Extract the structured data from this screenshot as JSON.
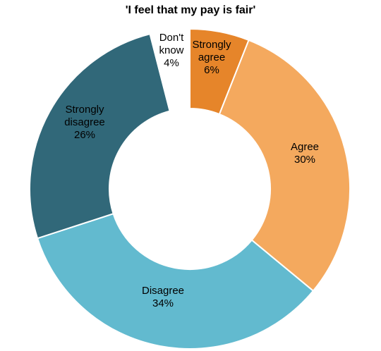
{
  "chart_data": {
    "type": "pie",
    "title": "'I feel that my pay is fair'",
    "donut": true,
    "slices": [
      {
        "label": [
          "Strongly",
          "agree",
          "6%"
        ],
        "value": 6,
        "color": "#E6852A",
        "text_color": "#000000"
      },
      {
        "label": [
          "Agree",
          "30%"
        ],
        "value": 30,
        "color": "#F4A95E",
        "text_color": "#000000"
      },
      {
        "label": [
          "Disagree",
          "34%"
        ],
        "value": 34,
        "color": "#62BACF",
        "text_color": "#000000"
      },
      {
        "label": [
          "Strongly",
          "disagree",
          "26%"
        ],
        "value": 26,
        "color": "#316879",
        "text_color": "#000000"
      },
      {
        "label": [
          "Don't",
          "know",
          "4%"
        ],
        "value": 4,
        "color": "#FFFFFF",
        "text_color": "#000000"
      }
    ]
  }
}
